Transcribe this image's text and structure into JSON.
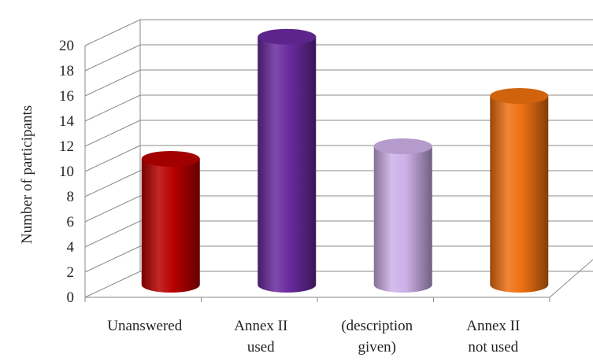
{
  "chart_data": {
    "type": "bar",
    "style": "3d-cylinder",
    "ylabel": "Number of participants",
    "xlabel": "",
    "ylim": [
      0,
      20
    ],
    "yticks": [
      0,
      2,
      4,
      6,
      8,
      10,
      12,
      14,
      16,
      18,
      20
    ],
    "grid": true,
    "legend": "none",
    "categories": [
      {
        "lines": [
          "Unanswered"
        ]
      },
      {
        "lines": [
          "Annex II",
          "used"
        ]
      },
      {
        "lines": [
          "(description",
          "given)"
        ]
      },
      {
        "lines": [
          "Annex II",
          "not used"
        ]
      }
    ],
    "values": [
      10,
      19.7,
      11,
      15
    ],
    "colors": [
      "#b80000",
      "#6a2a9e",
      "#cdb0e8",
      "#ee7010"
    ]
  }
}
